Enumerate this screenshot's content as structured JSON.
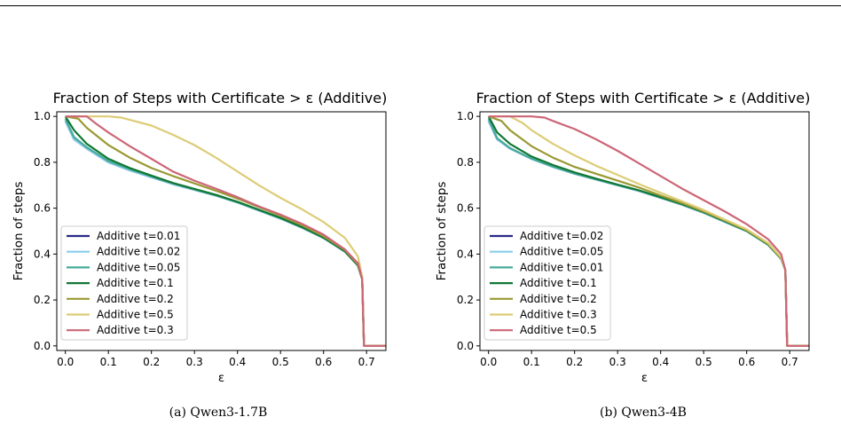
{
  "chart_data": [
    {
      "type": "line",
      "title": "Fraction of Steps with Certificate > ε  (Additive)",
      "xlabel": "ε",
      "ylabel": "Fraction of steps",
      "xlim": [
        -0.02,
        0.745
      ],
      "ylim": [
        -0.02,
        1.02
      ],
      "xticks": [
        "0.0",
        "0.1",
        "0.2",
        "0.3",
        "0.4",
        "0.5",
        "0.6",
        "0.7"
      ],
      "yticks": [
        "0.0",
        "0.2",
        "0.4",
        "0.6",
        "0.8",
        "1.0"
      ],
      "legend_position": "lower-left",
      "caption": "(a) Qwen3-1.7B",
      "series": [
        {
          "name": "Additive t=0.01",
          "color": "#2b2a86",
          "x": [
            0,
            0.02,
            0.05,
            0.1,
            0.15,
            0.2,
            0.25,
            0.3,
            0.35,
            0.4,
            0.45,
            0.5,
            0.55,
            0.6,
            0.65,
            0.68,
            0.69,
            0.694,
            0.745
          ],
          "y": [
            0.98,
            0.9,
            0.86,
            0.8,
            0.765,
            0.735,
            0.705,
            0.68,
            0.655,
            0.625,
            0.59,
            0.555,
            0.515,
            0.47,
            0.41,
            0.35,
            0.29,
            0.0,
            0.0
          ]
        },
        {
          "name": "Additive t=0.02",
          "color": "#87ceeb",
          "x": [
            0,
            0.02,
            0.05,
            0.1,
            0.15,
            0.2,
            0.25,
            0.3,
            0.35,
            0.4,
            0.45,
            0.5,
            0.55,
            0.6,
            0.65,
            0.68,
            0.69,
            0.694,
            0.745
          ],
          "y": [
            0.98,
            0.9,
            0.86,
            0.8,
            0.765,
            0.735,
            0.705,
            0.68,
            0.655,
            0.625,
            0.59,
            0.555,
            0.515,
            0.47,
            0.41,
            0.35,
            0.29,
            0.0,
            0.0
          ]
        },
        {
          "name": "Additive t=0.05",
          "color": "#44aa99",
          "x": [
            0,
            0.02,
            0.05,
            0.1,
            0.15,
            0.2,
            0.25,
            0.3,
            0.35,
            0.4,
            0.45,
            0.5,
            0.55,
            0.6,
            0.65,
            0.68,
            0.69,
            0.694,
            0.745
          ],
          "y": [
            0.99,
            0.91,
            0.865,
            0.805,
            0.77,
            0.738,
            0.708,
            0.682,
            0.656,
            0.626,
            0.591,
            0.556,
            0.516,
            0.471,
            0.411,
            0.35,
            0.29,
            0.0,
            0.0
          ]
        },
        {
          "name": "Additive t=0.1",
          "color": "#117733",
          "x": [
            0,
            0.02,
            0.05,
            0.1,
            0.15,
            0.2,
            0.25,
            0.3,
            0.35,
            0.4,
            0.45,
            0.5,
            0.55,
            0.6,
            0.65,
            0.68,
            0.69,
            0.694,
            0.745
          ],
          "y": [
            1.0,
            0.94,
            0.88,
            0.815,
            0.775,
            0.742,
            0.71,
            0.684,
            0.658,
            0.628,
            0.593,
            0.558,
            0.518,
            0.472,
            0.412,
            0.35,
            0.29,
            0.0,
            0.0
          ]
        },
        {
          "name": "Additive t=0.2",
          "color": "#999933",
          "x": [
            0,
            0.03,
            0.05,
            0.1,
            0.15,
            0.2,
            0.25,
            0.3,
            0.35,
            0.4,
            0.45,
            0.5,
            0.55,
            0.6,
            0.65,
            0.68,
            0.69,
            0.694,
            0.745
          ],
          "y": [
            1.0,
            0.99,
            0.95,
            0.875,
            0.82,
            0.775,
            0.74,
            0.708,
            0.676,
            0.642,
            0.605,
            0.567,
            0.526,
            0.478,
            0.417,
            0.355,
            0.29,
            0.0,
            0.0
          ]
        },
        {
          "name": "Additive t=0.5",
          "color": "#ddcc77",
          "x": [
            0,
            0.05,
            0.1,
            0.13,
            0.15,
            0.2,
            0.25,
            0.3,
            0.35,
            0.4,
            0.45,
            0.5,
            0.55,
            0.6,
            0.65,
            0.68,
            0.69,
            0.694,
            0.745
          ],
          "y": [
            1.0,
            1.0,
            1.0,
            0.995,
            0.985,
            0.96,
            0.92,
            0.875,
            0.82,
            0.76,
            0.7,
            0.645,
            0.595,
            0.54,
            0.47,
            0.39,
            0.3,
            0.0,
            0.0
          ]
        },
        {
          "name": "Additive t=0.3",
          "color": "#cc6677",
          "x": [
            0,
            0.05,
            0.07,
            0.1,
            0.15,
            0.2,
            0.25,
            0.3,
            0.35,
            0.4,
            0.45,
            0.5,
            0.55,
            0.6,
            0.65,
            0.68,
            0.69,
            0.694,
            0.745
          ],
          "y": [
            1.0,
            1.0,
            0.97,
            0.93,
            0.87,
            0.815,
            0.76,
            0.72,
            0.685,
            0.648,
            0.608,
            0.572,
            0.532,
            0.485,
            0.42,
            0.36,
            0.29,
            0.0,
            0.0
          ]
        }
      ]
    },
    {
      "type": "line",
      "title": "Fraction of Steps with Certificate > ε  (Additive)",
      "xlabel": "ε",
      "ylabel": "Fraction of steps",
      "xlim": [
        -0.02,
        0.745
      ],
      "ylim": [
        -0.02,
        1.02
      ],
      "xticks": [
        "0.0",
        "0.1",
        "0.2",
        "0.3",
        "0.4",
        "0.5",
        "0.6",
        "0.7"
      ],
      "yticks": [
        "0.0",
        "0.2",
        "0.4",
        "0.6",
        "0.8",
        "1.0"
      ],
      "legend_position": "lower-left",
      "caption": "(b) Qwen3-4B",
      "series": [
        {
          "name": "Additive t=0.02",
          "color": "#2b2a86",
          "x": [
            0,
            0.02,
            0.05,
            0.1,
            0.15,
            0.2,
            0.25,
            0.3,
            0.35,
            0.4,
            0.45,
            0.5,
            0.55,
            0.6,
            0.65,
            0.68,
            0.69,
            0.694,
            0.745
          ],
          "y": [
            0.98,
            0.9,
            0.86,
            0.815,
            0.78,
            0.75,
            0.725,
            0.7,
            0.675,
            0.645,
            0.615,
            0.58,
            0.54,
            0.5,
            0.44,
            0.38,
            0.33,
            0.0,
            0.0
          ]
        },
        {
          "name": "Additive t=0.05",
          "color": "#87ceeb",
          "x": [
            0,
            0.02,
            0.05,
            0.1,
            0.15,
            0.2,
            0.25,
            0.3,
            0.35,
            0.4,
            0.45,
            0.5,
            0.55,
            0.6,
            0.65,
            0.68,
            0.69,
            0.694,
            0.745
          ],
          "y": [
            0.98,
            0.9,
            0.86,
            0.815,
            0.78,
            0.75,
            0.725,
            0.7,
            0.675,
            0.645,
            0.615,
            0.58,
            0.54,
            0.5,
            0.44,
            0.38,
            0.33,
            0.0,
            0.0
          ]
        },
        {
          "name": "Additive t=0.01",
          "color": "#44aa99",
          "x": [
            0,
            0.02,
            0.05,
            0.1,
            0.15,
            0.2,
            0.25,
            0.3,
            0.35,
            0.4,
            0.45,
            0.5,
            0.55,
            0.6,
            0.65,
            0.68,
            0.69,
            0.694,
            0.745
          ],
          "y": [
            0.99,
            0.905,
            0.862,
            0.816,
            0.781,
            0.751,
            0.726,
            0.701,
            0.676,
            0.646,
            0.616,
            0.581,
            0.541,
            0.5,
            0.44,
            0.38,
            0.33,
            0.0,
            0.0
          ]
        },
        {
          "name": "Additive t=0.1",
          "color": "#117733",
          "x": [
            0,
            0.02,
            0.05,
            0.1,
            0.15,
            0.2,
            0.25,
            0.3,
            0.35,
            0.4,
            0.45,
            0.5,
            0.55,
            0.6,
            0.65,
            0.68,
            0.69,
            0.694,
            0.745
          ],
          "y": [
            1.0,
            0.93,
            0.88,
            0.825,
            0.788,
            0.756,
            0.729,
            0.703,
            0.678,
            0.648,
            0.618,
            0.583,
            0.543,
            0.502,
            0.442,
            0.38,
            0.33,
            0.0,
            0.0
          ]
        },
        {
          "name": "Additive t=0.2",
          "color": "#999933",
          "x": [
            0,
            0.03,
            0.05,
            0.1,
            0.15,
            0.2,
            0.25,
            0.3,
            0.35,
            0.4,
            0.45,
            0.5,
            0.55,
            0.6,
            0.65,
            0.68,
            0.69,
            0.694,
            0.745
          ],
          "y": [
            1.0,
            0.98,
            0.94,
            0.87,
            0.82,
            0.78,
            0.75,
            0.72,
            0.69,
            0.655,
            0.622,
            0.586,
            0.546,
            0.504,
            0.444,
            0.382,
            0.33,
            0.0,
            0.0
          ]
        },
        {
          "name": "Additive t=0.3",
          "color": "#ddcc77",
          "x": [
            0,
            0.05,
            0.08,
            0.1,
            0.15,
            0.2,
            0.25,
            0.3,
            0.35,
            0.4,
            0.45,
            0.5,
            0.55,
            0.6,
            0.65,
            0.68,
            0.69,
            0.694,
            0.745
          ],
          "y": [
            1.0,
            1.0,
            0.97,
            0.94,
            0.88,
            0.83,
            0.785,
            0.745,
            0.705,
            0.667,
            0.63,
            0.592,
            0.55,
            0.508,
            0.448,
            0.385,
            0.33,
            0.0,
            0.0
          ]
        },
        {
          "name": "Additive t=0.5",
          "color": "#cc6677",
          "x": [
            0,
            0.05,
            0.1,
            0.13,
            0.15,
            0.2,
            0.25,
            0.3,
            0.35,
            0.4,
            0.45,
            0.5,
            0.55,
            0.6,
            0.65,
            0.68,
            0.69,
            0.694,
            0.745
          ],
          "y": [
            1.0,
            1.0,
            1.0,
            0.995,
            0.98,
            0.945,
            0.9,
            0.85,
            0.795,
            0.74,
            0.685,
            0.635,
            0.585,
            0.53,
            0.465,
            0.4,
            0.33,
            0.0,
            0.0
          ]
        }
      ]
    }
  ]
}
